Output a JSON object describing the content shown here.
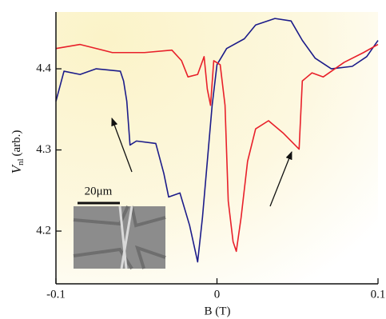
{
  "chart_data": {
    "type": "line",
    "xlabel": "B (T)",
    "ylabel_symbol": "V",
    "ylabel_subscript": "nl",
    "ylabel_unit": "(arb.)",
    "inset_scale_label": "20μm",
    "xlim": [
      -0.1,
      0.1
    ],
    "xticks": [
      -0.1,
      0,
      0.1
    ],
    "ylim": [
      4.135,
      4.47
    ],
    "yticks": [
      4.2,
      4.3,
      4.4
    ],
    "series": [
      {
        "color": "#1c1c8a",
        "x": [
          -0.1,
          -0.095,
          -0.085,
          -0.075,
          -0.06,
          -0.058,
          -0.056,
          -0.054,
          -0.05,
          -0.038,
          -0.033,
          -0.03,
          -0.023,
          -0.017,
          -0.012,
          -0.009,
          -0.006,
          -0.003,
          0.0,
          0.006,
          0.017,
          0.024,
          0.036,
          0.046,
          0.053,
          0.061,
          0.071,
          0.084,
          0.093,
          0.1
        ],
        "values": [
          4.36,
          4.397,
          4.393,
          4.4,
          4.397,
          4.385,
          4.36,
          4.306,
          4.311,
          4.308,
          4.271,
          4.242,
          4.247,
          4.207,
          4.162,
          4.217,
          4.286,
          4.355,
          4.405,
          4.425,
          4.437,
          4.454,
          4.462,
          4.459,
          4.435,
          4.413,
          4.4,
          4.403,
          4.415,
          4.435
        ]
      },
      {
        "color": "#e8202a",
        "x": [
          -0.1,
          -0.085,
          -0.065,
          -0.045,
          -0.028,
          -0.022,
          -0.018,
          -0.012,
          -0.008,
          -0.006,
          -0.004,
          -0.002,
          0.002,
          0.005,
          0.007,
          0.01,
          0.012,
          0.015,
          0.019,
          0.024,
          0.032,
          0.041,
          0.051,
          0.053,
          0.059,
          0.066,
          0.079,
          0.091,
          0.1
        ],
        "values": [
          4.425,
          4.43,
          4.42,
          4.42,
          4.423,
          4.41,
          4.39,
          4.393,
          4.415,
          4.375,
          4.355,
          4.41,
          4.405,
          4.355,
          4.237,
          4.187,
          4.175,
          4.217,
          4.286,
          4.326,
          4.336,
          4.321,
          4.301,
          4.385,
          4.395,
          4.39,
          4.408,
          4.42,
          4.43
        ]
      }
    ]
  }
}
